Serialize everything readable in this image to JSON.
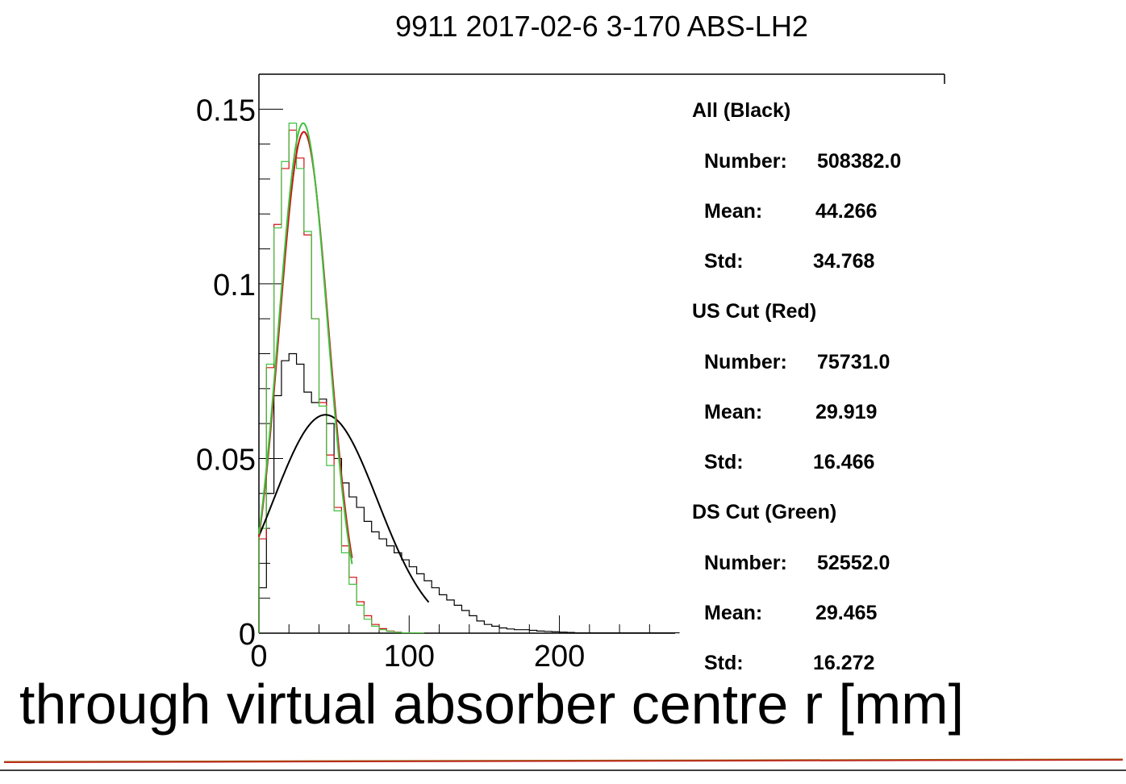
{
  "chart_data": {
    "type": "histogram",
    "title": "9911 2017-02-6 3-170 ABS-LH2",
    "xlabel": "through virtual absorber centre r [mm]",
    "ylabel": "",
    "xlim": [
      0,
      280
    ],
    "ylim": [
      0,
      0.16
    ],
    "bin_width": 5,
    "x_ticks": [
      0,
      100,
      200
    ],
    "x_tick_labels": [
      "0",
      "100",
      "200"
    ],
    "y_ticks": [
      0,
      0.05,
      0.1,
      0.15
    ],
    "y_tick_labels": [
      "0",
      "0.05",
      "0.1",
      "0.15"
    ],
    "series": [
      {
        "color": "#000000",
        "bin_edges_start": 0,
        "values": [
          0.013,
          0.04,
          0.068,
          0.078,
          0.08,
          0.077,
          0.069,
          0.066,
          0.067,
          0.06,
          0.05,
          0.043,
          0.039,
          0.036,
          0.032,
          0.029,
          0.027,
          0.025,
          0.023,
          0.021,
          0.019,
          0.017,
          0.015,
          0.013,
          0.011,
          0.0095,
          0.008,
          0.0065,
          0.005,
          0.0035,
          0.0025,
          0.002,
          0.0015,
          0.0012,
          0.001,
          0.001,
          0.0008,
          0.0006,
          0.0005,
          0.0004,
          0.0003,
          0.0002,
          0.0001,
          0.0001,
          0.0001,
          0.0001,
          0.0001,
          0.0001,
          0.0001,
          0.0001,
          0.0001,
          0.0001,
          0.0001,
          0.0001,
          0.0001,
          0.0001
        ],
        "fit": {
          "mean": 44.266,
          "std": 34.768,
          "peak": 0.0625,
          "range": [
            0,
            113
          ]
        }
      },
      {
        "color": "#d01010",
        "bin_edges_start": 0,
        "values": [
          0.027,
          0.076,
          0.117,
          0.133,
          0.144,
          0.136,
          0.114,
          0.09,
          0.066,
          0.051,
          0.036,
          0.025,
          0.016,
          0.009,
          0.005,
          0.0025,
          0.0013,
          0.0006,
          0.0003,
          0.0001,
          0.0001,
          0.0001
        ],
        "fit": {
          "mean": 29.919,
          "std": 16.466,
          "peak": 0.1435,
          "range": [
            0,
            62
          ]
        }
      },
      {
        "color": "#40c040",
        "bin_edges_start": 0,
        "values": [
          0.03,
          0.077,
          0.116,
          0.135,
          0.146,
          0.133,
          0.115,
          0.09,
          0.065,
          0.048,
          0.035,
          0.023,
          0.014,
          0.008,
          0.004,
          0.002,
          0.001,
          0.0005,
          0.0002,
          0.0001,
          0.0001,
          0.0001
        ],
        "fit": {
          "mean": 29.465,
          "std": 16.272,
          "peak": 0.146,
          "range": [
            0,
            62
          ]
        }
      }
    ]
  },
  "stats": [
    {
      "heading": "All (Black)",
      "rows": [
        [
          "Number:",
          "508382.0"
        ],
        [
          "Mean:",
          "44.266"
        ],
        [
          "Std:",
          "34.768"
        ]
      ]
    },
    {
      "heading": "US Cut (Red)",
      "rows": [
        [
          "Number:",
          "75731.0"
        ],
        [
          "Mean:",
          "29.919"
        ],
        [
          "Std:",
          "16.466"
        ]
      ]
    },
    {
      "heading": "DS Cut (Green)",
      "rows": [
        [
          "Number:",
          "52552.0"
        ],
        [
          "Mean:",
          "29.465"
        ],
        [
          "Std:",
          "16.272"
        ]
      ]
    }
  ]
}
